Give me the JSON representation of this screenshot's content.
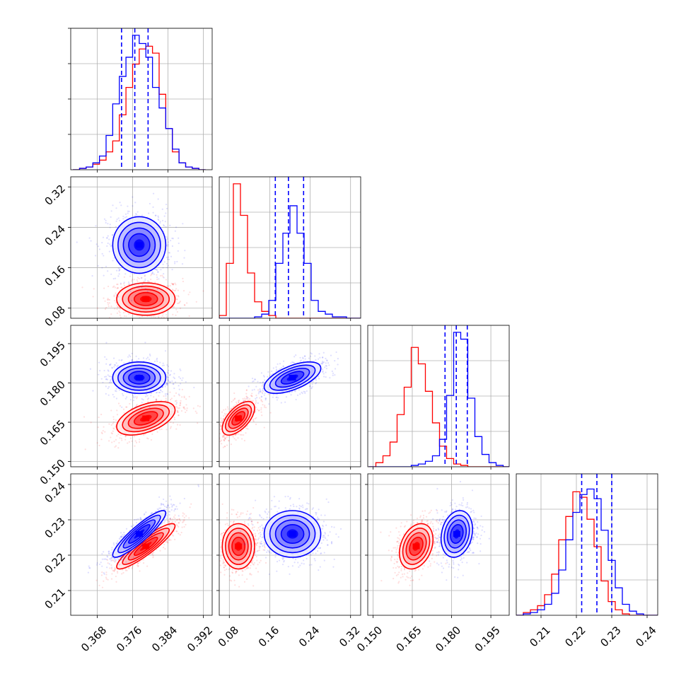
{
  "chart_data": {
    "type": "corner",
    "dimensions": 4,
    "grid": true,
    "colors": {
      "series_a": "#0000ff",
      "series_b": "#ff0000",
      "quantile_lines": "#0000ff"
    },
    "axes": [
      {
        "range": [
          0.362,
          0.394
        ],
        "ticks": [
          0.368,
          0.376,
          0.384,
          0.392
        ],
        "tick_labels": [
          "0.368",
          "0.376",
          "0.384",
          "0.392"
        ]
      },
      {
        "range": [
          0.06,
          0.34
        ],
        "ticks": [
          0.08,
          0.16,
          0.24,
          0.32
        ],
        "tick_labels": [
          "0.08",
          "0.16",
          "0.24",
          "0.32"
        ]
      },
      {
        "range": [
          0.148,
          0.202
        ],
        "ticks": [
          0.15,
          0.165,
          0.18,
          0.195
        ],
        "tick_labels": [
          "0.150",
          "0.165",
          "0.180",
          "0.195"
        ]
      },
      {
        "range": [
          0.203,
          0.243
        ],
        "ticks": [
          0.21,
          0.22,
          0.23,
          0.24
        ],
        "tick_labels": [
          "0.21",
          "0.22",
          "0.23",
          "0.24"
        ]
      }
    ],
    "series": [
      {
        "color": "#0000ff",
        "means": [
          0.3775,
          0.205,
          0.182,
          0.226
        ],
        "sigmas": [
          0.003,
          0.028,
          0.003,
          0.0033
        ],
        "correlations": [
          [
            0,
            3,
            0.9
          ],
          [
            1,
            2,
            0.6
          ],
          [
            2,
            3,
            0.2
          ]
        ],
        "quantiles_16_50_84": [
          [
            0.3735,
            0.3765,
            0.3795
          ],
          [
            0.171,
            0.197,
            0.227
          ],
          [
            0.1775,
            0.1818,
            0.186
          ],
          [
            0.2215,
            0.2258,
            0.23
          ]
        ]
      },
      {
        "color": "#ff0000",
        "means": [
          0.379,
          0.098,
          0.1665,
          0.2225
        ],
        "sigmas": [
          0.0033,
          0.016,
          0.0032,
          0.0032
        ],
        "correlations": [
          [
            0,
            2,
            0.5
          ],
          [
            0,
            3,
            0.9
          ],
          [
            1,
            2,
            0.6
          ],
          [
            2,
            3,
            0.3
          ]
        ]
      }
    ],
    "histograms": [
      {
        "dim": 0,
        "bin_edges": [
          0.3625,
          0.364,
          0.3655,
          0.367,
          0.3685,
          0.37,
          0.3715,
          0.373,
          0.3745,
          0.376,
          0.3775,
          0.379,
          0.3805,
          0.382,
          0.3835,
          0.385,
          0.3865,
          0.388,
          0.3895,
          0.391,
          0.3925
        ],
        "series_a": [
          0.0,
          0.01,
          0.02,
          0.05,
          0.1,
          0.25,
          0.48,
          0.68,
          0.82,
          0.98,
          0.92,
          0.82,
          0.6,
          0.45,
          0.3,
          0.15,
          0.05,
          0.02,
          0.01,
          0.0
        ],
        "series_b": [
          0.0,
          0.01,
          0.02,
          0.04,
          0.07,
          0.13,
          0.21,
          0.4,
          0.6,
          0.77,
          0.88,
          0.9,
          0.85,
          0.55,
          0.3,
          0.13,
          0.05,
          0.02,
          0.01,
          0.0
        ]
      },
      {
        "dim": 1,
        "bin_edges": [
          0.06,
          0.074,
          0.088,
          0.102,
          0.116,
          0.13,
          0.144,
          0.158,
          0.172,
          0.186,
          0.2,
          0.214,
          0.228,
          0.242,
          0.256,
          0.27,
          0.284,
          0.298,
          0.312,
          0.326,
          0.34
        ],
        "series_a": [
          0.0,
          0.0,
          0.0,
          0.0,
          0.0,
          0.01,
          0.03,
          0.13,
          0.4,
          0.62,
          0.82,
          0.62,
          0.4,
          0.13,
          0.05,
          0.03,
          0.01,
          0.01,
          0.0,
          0.0
        ],
        "series_b": [
          0.02,
          0.4,
          0.98,
          0.75,
          0.33,
          0.12,
          0.05,
          0.02,
          0.0,
          0.0,
          0.0,
          0.0,
          0.0,
          0.0,
          0.0,
          0.0,
          0.0,
          0.0,
          0.0,
          0.0
        ]
      },
      {
        "dim": 2,
        "bin_edges": [
          0.1484,
          0.1511,
          0.1538,
          0.1565,
          0.1592,
          0.1619,
          0.1646,
          0.1673,
          0.17,
          0.1727,
          0.1754,
          0.1781,
          0.1808,
          0.1835,
          0.1862,
          0.1889,
          0.1916,
          0.1943,
          0.197,
          0.1997,
          0.2024
        ],
        "series_a": [
          0.0,
          0.0,
          0.0,
          0.0,
          0.0,
          0.0,
          0.01,
          0.02,
          0.04,
          0.08,
          0.2,
          0.52,
          0.98,
          0.93,
          0.5,
          0.22,
          0.09,
          0.03,
          0.01,
          0.0
        ],
        "series_b": [
          0.0,
          0.03,
          0.08,
          0.18,
          0.38,
          0.58,
          0.87,
          0.75,
          0.55,
          0.32,
          0.15,
          0.06,
          0.02,
          0.01,
          0.0,
          0.0,
          0.0,
          0.0,
          0.0,
          0.0
        ]
      },
      {
        "dim": 3,
        "bin_edges": [
          0.203,
          0.205,
          0.207,
          0.209,
          0.211,
          0.213,
          0.215,
          0.217,
          0.219,
          0.221,
          0.223,
          0.225,
          0.227,
          0.229,
          0.231,
          0.233,
          0.235,
          0.237,
          0.239,
          0.241,
          0.243
        ],
        "series_a": [
          0.0,
          0.01,
          0.02,
          0.04,
          0.08,
          0.16,
          0.33,
          0.55,
          0.75,
          0.88,
          0.92,
          0.85,
          0.62,
          0.4,
          0.2,
          0.08,
          0.03,
          0.01,
          0.0,
          0.0
        ],
        "series_b": [
          0.0,
          0.02,
          0.04,
          0.07,
          0.15,
          0.3,
          0.55,
          0.72,
          0.9,
          0.86,
          0.7,
          0.5,
          0.25,
          0.1,
          0.04,
          0.01,
          0.0,
          0.0,
          0.0,
          0.0
        ]
      }
    ]
  }
}
